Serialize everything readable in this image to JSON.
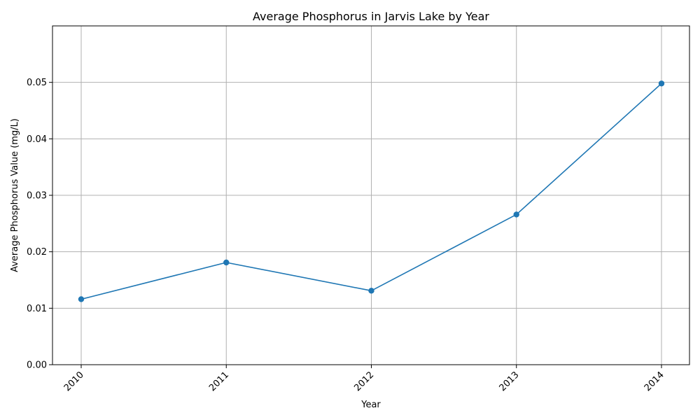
{
  "chart_data": {
    "type": "line",
    "title": "Average Phosphorus in Jarvis Lake by Year",
    "xlabel": "Year",
    "ylabel": "Average Phosphorus Value (mg/L)",
    "x": [
      "2010",
      "2011",
      "2012",
      "2013",
      "2014"
    ],
    "series": [
      {
        "values": [
          0.0116,
          0.0181,
          0.0131,
          0.0266,
          0.0498
        ]
      }
    ],
    "ylim": [
      0,
      0.06
    ],
    "yticks": [
      "0.00",
      "0.01",
      "0.02",
      "0.03",
      "0.04",
      "0.05"
    ],
    "grid": true,
    "marker": "circle",
    "line_color": "#1f77b4",
    "grid_color": "#b0b0b0",
    "axis_color": "#000000"
  }
}
